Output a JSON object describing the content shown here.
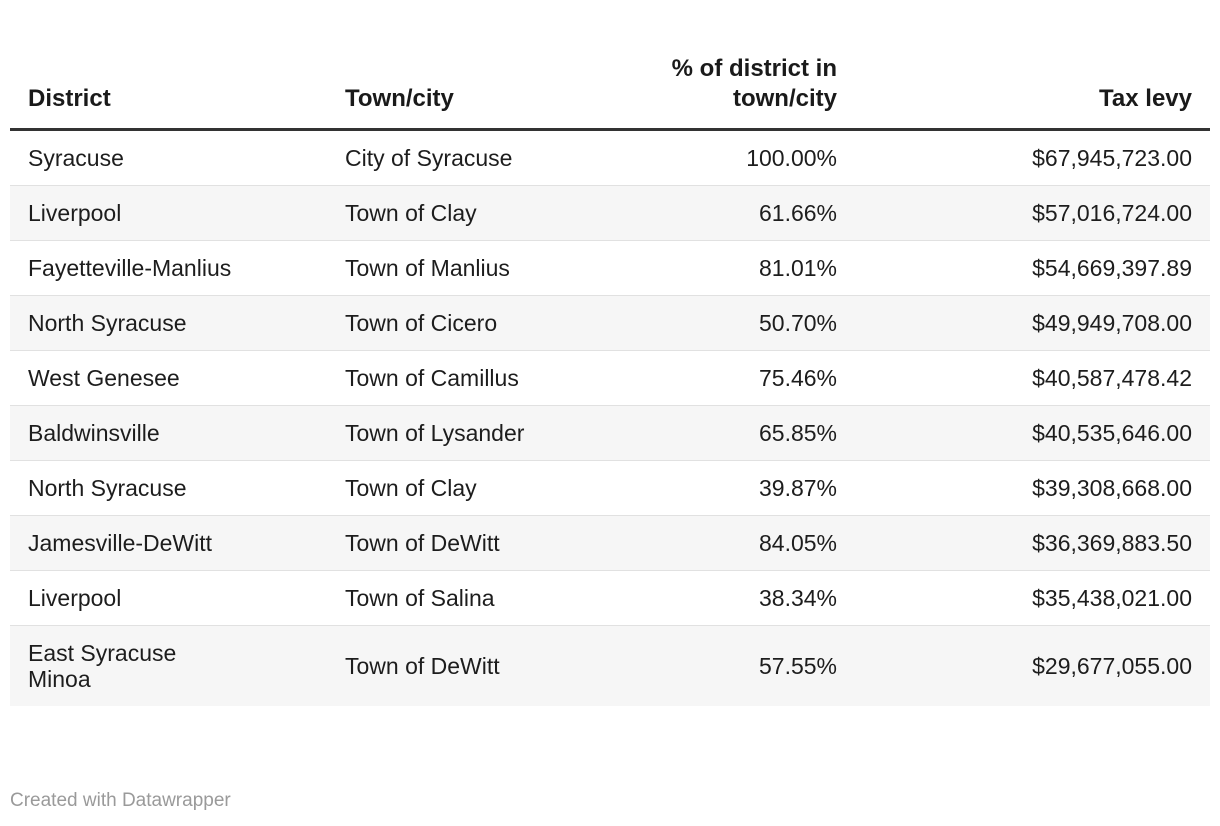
{
  "chart_data": {
    "type": "table",
    "title": "",
    "columns": [
      "District",
      "Town/city",
      "% of district in\ntown/city",
      "Tax levy"
    ],
    "rows": [
      {
        "district": "Syracuse",
        "town": "City of Syracuse",
        "pct": "100.00%",
        "levy": "$67,945,723.00"
      },
      {
        "district": "Liverpool",
        "town": "Town of Clay",
        "pct": "61.66%",
        "levy": "$57,016,724.00"
      },
      {
        "district": "Fayetteville-Manlius",
        "town": "Town of Manlius",
        "pct": "81.01%",
        "levy": "$54,669,397.89"
      },
      {
        "district": "North Syracuse",
        "town": "Town of Cicero",
        "pct": "50.70%",
        "levy": "$49,949,708.00"
      },
      {
        "district": "West Genesee",
        "town": "Town of Camillus",
        "pct": "75.46%",
        "levy": "$40,587,478.42"
      },
      {
        "district": "Baldwinsville",
        "town": "Town of Lysander",
        "pct": "65.85%",
        "levy": "$40,535,646.00"
      },
      {
        "district": "North Syracuse",
        "town": "Town of Clay",
        "pct": "39.87%",
        "levy": "$39,308,668.00"
      },
      {
        "district": "Jamesville-DeWitt",
        "town": "Town of DeWitt",
        "pct": "84.05%",
        "levy": "$36,369,883.50"
      },
      {
        "district": "Liverpool",
        "town": "Town of Salina",
        "pct": "38.34%",
        "levy": "$35,438,021.00"
      },
      {
        "district": "East Syracuse\nMinoa",
        "town": "Town of DeWitt",
        "pct": "57.55%",
        "levy": "$29,677,055.00"
      }
    ],
    "layout_hints": {
      "striped_rows": "even rows shaded",
      "column_alignment": [
        "left",
        "left",
        "right",
        "right"
      ],
      "header_rule": "thick dark line under header"
    }
  },
  "footer": {
    "credit": "Created with Datawrapper"
  },
  "colors": {
    "header_rule": "#333333",
    "row_stripe": "#f6f6f6",
    "row_divider": "#e1e1e1",
    "text": "#1d1d1d",
    "footer_text": "#9a9a9a",
    "background": "#ffffff"
  }
}
